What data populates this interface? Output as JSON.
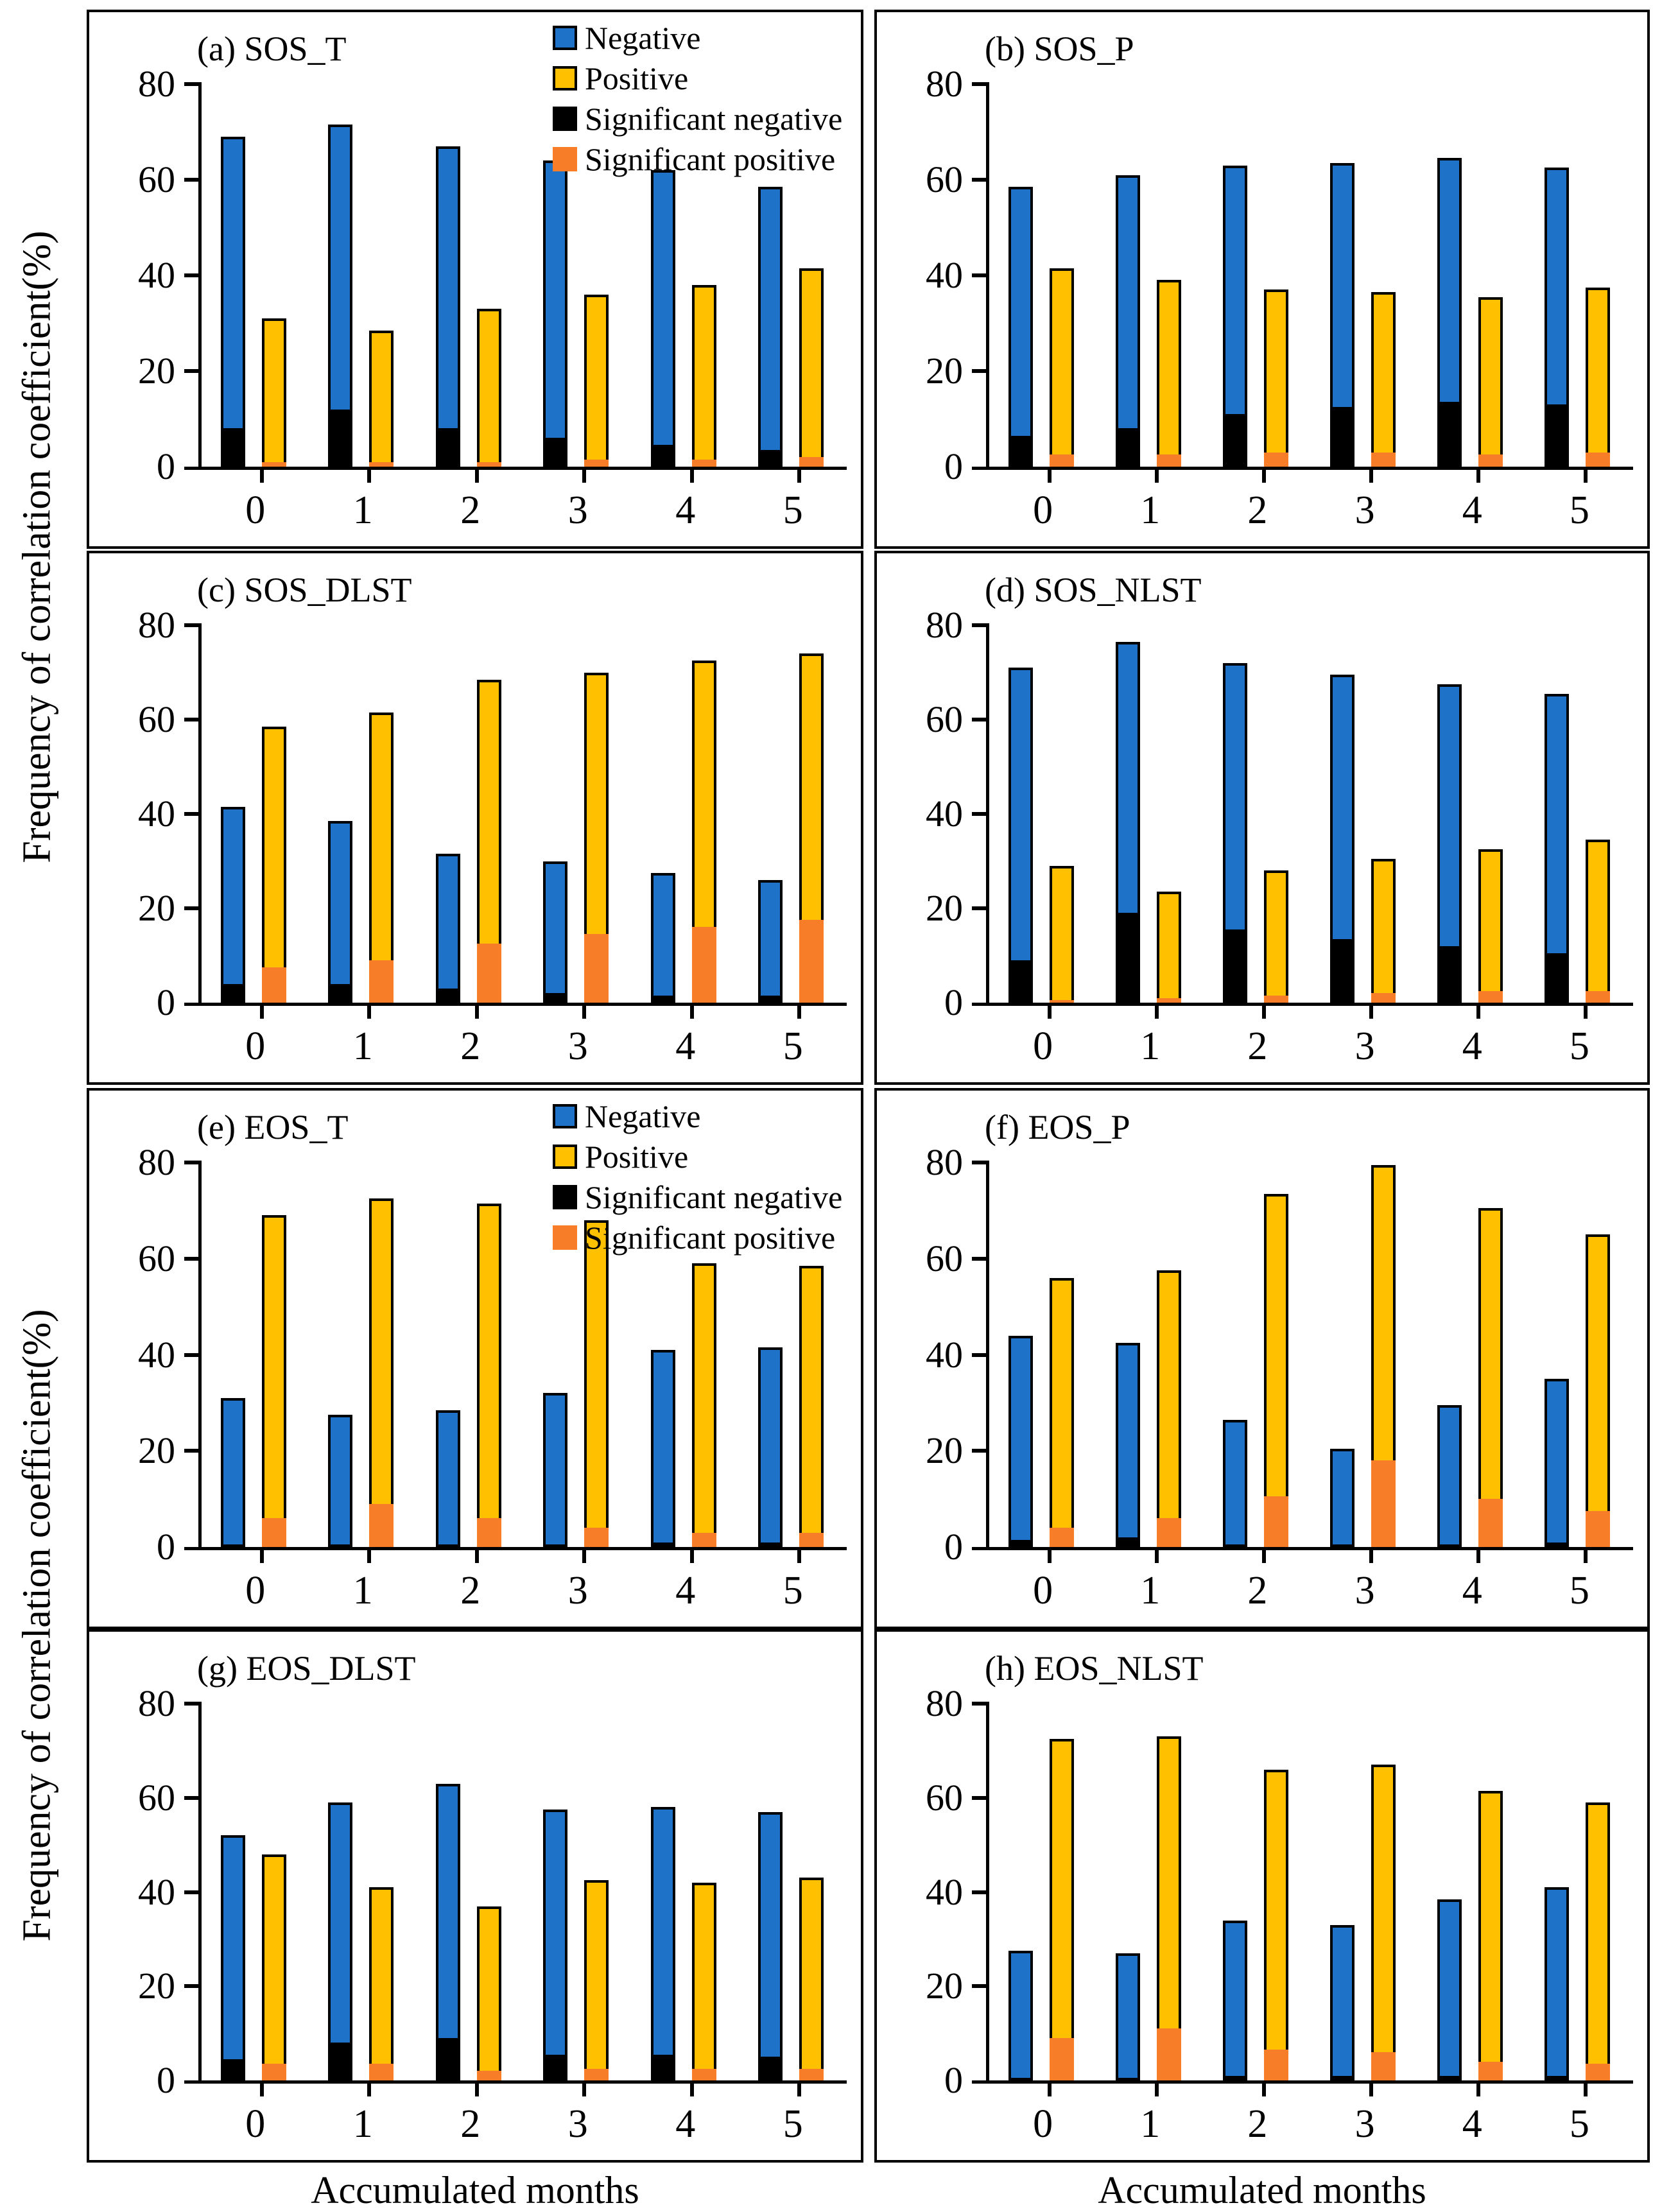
{
  "figure": {
    "ylabel": "Frequency of correlation coefficient(%)",
    "xlabel": "Accumulated months"
  },
  "legend": {
    "items": [
      {
        "label": "Negative",
        "color": "#1E73C8",
        "outlined": true
      },
      {
        "label": "Positive",
        "color": "#FFC000",
        "outlined": true
      },
      {
        "label": "Significant negative",
        "color": "#000000",
        "outlined": false
      },
      {
        "label": "Significant positive",
        "color": "#F87D29",
        "outlined": false
      }
    ]
  },
  "chart_data": {
    "type": "bar",
    "categories": [
      "0",
      "1",
      "2",
      "3",
      "4",
      "5"
    ],
    "xlabel": "Accumulated months",
    "ylabel": "Frequency of correlation coefficient(%)",
    "ylim": [
      0,
      80
    ],
    "yticks": [
      0,
      20,
      40,
      60,
      80
    ],
    "grid": false,
    "legend_position": "inside top-right of panels a and e",
    "series_names": [
      "Negative",
      "Positive",
      "Significant negative",
      "Significant positive"
    ],
    "colors": {
      "negative": "#1E73C8",
      "positive": "#FFC000",
      "significant_negative": "#000000",
      "significant_positive": "#F87D29"
    },
    "panels": [
      {
        "id": "a",
        "title": "(a) SOS_T",
        "has_legend": true,
        "negative": [
          69,
          71.5,
          67,
          64,
          62,
          58.5
        ],
        "positive": [
          31,
          28.5,
          33,
          36,
          38,
          41.5
        ],
        "significant_negative": [
          8,
          12,
          8,
          6,
          4.5,
          3.5
        ],
        "significant_positive": [
          1,
          1,
          1,
          1.5,
          1.5,
          2
        ]
      },
      {
        "id": "b",
        "title": "(b) SOS_P",
        "has_legend": false,
        "negative": [
          58.5,
          61,
          63,
          63.5,
          64.5,
          62.5
        ],
        "positive": [
          41.5,
          39,
          37,
          36.5,
          35.5,
          37.5
        ],
        "significant_negative": [
          6.5,
          8,
          11,
          12.5,
          13.5,
          13
        ],
        "significant_positive": [
          2.5,
          2.5,
          3,
          3,
          2.5,
          3
        ]
      },
      {
        "id": "c",
        "title": "(c) SOS_DLST",
        "has_legend": false,
        "negative": [
          41.5,
          38.5,
          31.5,
          30,
          27.5,
          26
        ],
        "positive": [
          58.5,
          61.5,
          68.5,
          70,
          72.5,
          74
        ],
        "significant_negative": [
          4,
          4,
          3,
          2,
          1.5,
          1.5
        ],
        "significant_positive": [
          7.5,
          9,
          12.5,
          14.5,
          16,
          17.5
        ]
      },
      {
        "id": "d",
        "title": "(d) SOS_NLST",
        "has_legend": false,
        "negative": [
          71,
          76.5,
          72,
          69.5,
          67.5,
          65.5
        ],
        "positive": [
          29,
          23.5,
          28,
          30.5,
          32.5,
          34.5
        ],
        "significant_negative": [
          9,
          19,
          15.5,
          13.5,
          12,
          10.5
        ],
        "significant_positive": [
          0.5,
          1,
          1.5,
          2,
          2.5,
          2.5
        ]
      },
      {
        "id": "e",
        "title": "(e) EOS_T",
        "has_legend": true,
        "negative": [
          31,
          27.5,
          28.5,
          32,
          41,
          41.5
        ],
        "positive": [
          69,
          72.5,
          71.5,
          68,
          59,
          58.5
        ],
        "significant_negative": [
          0.5,
          0.5,
          0.5,
          0.5,
          1,
          1
        ],
        "significant_positive": [
          6,
          9,
          6,
          4,
          3,
          3
        ]
      },
      {
        "id": "f",
        "title": "(f) EOS_P",
        "has_legend": false,
        "negative": [
          44,
          42.5,
          26.5,
          20.5,
          29.5,
          35
        ],
        "positive": [
          56,
          57.5,
          73.5,
          79.5,
          70.5,
          65
        ],
        "significant_negative": [
          1.5,
          2,
          0.5,
          0.5,
          0.5,
          1
        ],
        "significant_positive": [
          4,
          6,
          10.5,
          18,
          10,
          7.5
        ]
      },
      {
        "id": "g",
        "title": "(g) EOS_DLST",
        "has_legend": false,
        "negative": [
          52,
          59,
          63,
          57.5,
          58,
          57
        ],
        "positive": [
          48,
          41,
          37,
          42.5,
          42,
          43
        ],
        "significant_negative": [
          4.5,
          8,
          9,
          5.5,
          5.5,
          5
        ],
        "significant_positive": [
          3.5,
          3.5,
          2,
          2.5,
          2.5,
          2.5
        ]
      },
      {
        "id": "h",
        "title": "(h) EOS_NLST",
        "has_legend": false,
        "negative": [
          27.5,
          27,
          34,
          33,
          38.5,
          41
        ],
        "positive": [
          72.5,
          73,
          66,
          67,
          61.5,
          59
        ],
        "significant_negative": [
          0.5,
          0.5,
          1,
          1,
          1,
          1
        ],
        "significant_positive": [
          9,
          11,
          6.5,
          6,
          4,
          3.5
        ]
      }
    ]
  }
}
